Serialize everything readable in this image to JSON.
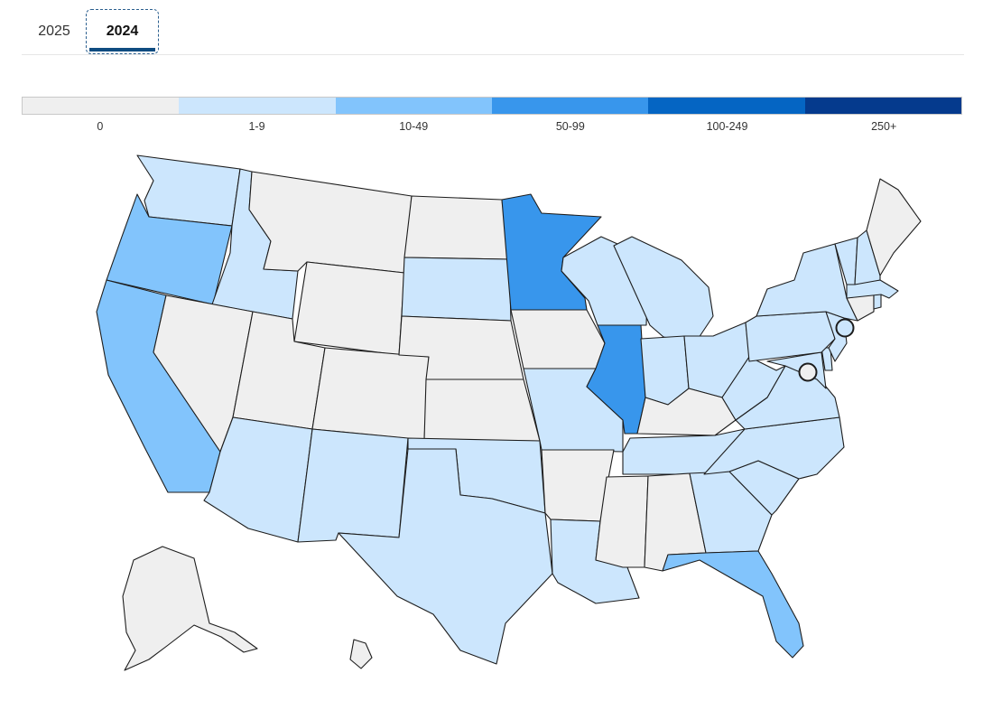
{
  "tabs": [
    {
      "label": "2025",
      "selected": false
    },
    {
      "label": "2024",
      "selected": true
    }
  ],
  "legend": [
    {
      "label": "0",
      "color": "#efefef"
    },
    {
      "label": "1-9",
      "color": "#cce6fd"
    },
    {
      "label": "10-49",
      "color": "#82c4fc"
    },
    {
      "label": "50-99",
      "color": "#3896ec"
    },
    {
      "label": "100-249",
      "color": "#0565c3"
    },
    {
      "label": "250+",
      "color": "#053a8d"
    }
  ],
  "map": {
    "states": {
      "WA": 1,
      "OR": 2,
      "CA": 2,
      "ID": 1,
      "NV": 0,
      "MT": 0,
      "WY": 0,
      "UT": 0,
      "AZ": 1,
      "CO": 0,
      "NM": 1,
      "ND": 0,
      "SD": 1,
      "NE": 0,
      "KS": 0,
      "OK": 1,
      "TX": 1,
      "MN": 3,
      "IA": 0,
      "MO": 1,
      "AR": 0,
      "LA": 1,
      "WI": 1,
      "IL": 3,
      "MI": 1,
      "IN": 1,
      "OH": 1,
      "KY": 0,
      "TN": 1,
      "MS": 0,
      "AL": 0,
      "GA": 1,
      "FL": 2,
      "SC": 1,
      "NC": 1,
      "VA": 1,
      "WV": 1,
      "MD": 1,
      "DE": 1,
      "PA": 1,
      "NJ": 1,
      "NY": 1,
      "CT": 0,
      "RI": 1,
      "MA": 1,
      "VT": 1,
      "NH": 1,
      "ME": 0,
      "AK": 0,
      "HI": 0
    },
    "cities": [
      {
        "name": "New York City",
        "category": 1
      },
      {
        "name": "Washington, D.C.",
        "category": 0
      }
    ]
  }
}
